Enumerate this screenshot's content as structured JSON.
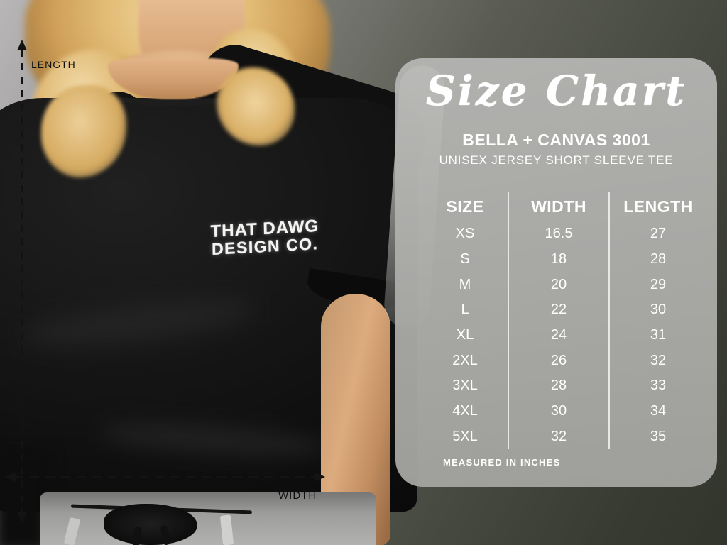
{
  "measurements": {
    "length_label": "LENGTH",
    "width_label": "WIDTH"
  },
  "shirt_logo": {
    "line1": "THAT DAWG",
    "line2": "DESIGN CO."
  },
  "chart_data": {
    "type": "table",
    "title": "Size Chart",
    "brand": "BELLA + CANVAS 3001",
    "product": "UNISEX JERSEY SHORT SLEEVE TEE",
    "columns": [
      "SIZE",
      "WIDTH",
      "LENGTH"
    ],
    "rows": [
      [
        "XS",
        "16.5",
        "27"
      ],
      [
        "S",
        "18",
        "28"
      ],
      [
        "M",
        "20",
        "29"
      ],
      [
        "L",
        "22",
        "30"
      ],
      [
        "XL",
        "24",
        "31"
      ],
      [
        "2XL",
        "26",
        "32"
      ],
      [
        "3XL",
        "28",
        "33"
      ],
      [
        "4XL",
        "30",
        "34"
      ],
      [
        "5XL",
        "32",
        "35"
      ]
    ],
    "footnote": "MEASURED IN INCHES",
    "layout": {
      "legend_position": "none",
      "grid": "column-dividers-only"
    },
    "colors": {
      "panel_background": "#aeaeac",
      "panel_text": "#ffffff",
      "annotation_lines": "#131313",
      "tshirt": "#121212",
      "divider": "#f0f0ee"
    }
  }
}
